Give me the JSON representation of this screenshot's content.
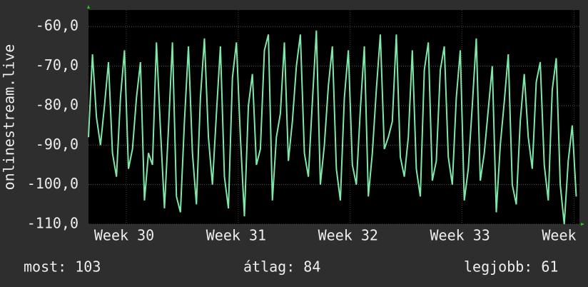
{
  "chart_data": {
    "type": "line",
    "ylabel": "onlinestream.live",
    "x": [
      0,
      0.25,
      0.5,
      0.75,
      1,
      1.25,
      1.5,
      1.75,
      2,
      2.25,
      2.5,
      2.75,
      3,
      3.25,
      3.5,
      3.75,
      4,
      4.25,
      4.5,
      4.75,
      5,
      5.25,
      5.5,
      5.75,
      6,
      6.25,
      6.5,
      6.75,
      7,
      7.25,
      7.5,
      7.75,
      8,
      8.25,
      8.5,
      8.75,
      9,
      9.25,
      9.5,
      9.75,
      10,
      10.25,
      10.5,
      10.75,
      11,
      11.25,
      11.5,
      11.75,
      12,
      12.25,
      12.5,
      12.75,
      13,
      13.25,
      13.5,
      13.75,
      14,
      14.25,
      14.5,
      14.75,
      15,
      15.25,
      15.5,
      15.75,
      16,
      16.25,
      16.5,
      16.75,
      17,
      17.25,
      17.5,
      17.75,
      18,
      18.25,
      18.5,
      18.75,
      19,
      19.25,
      19.5,
      19.75,
      20,
      20.25,
      20.5,
      20.75,
      21,
      21.25,
      21.5,
      21.75,
      22,
      22.25,
      22.5,
      22.75,
      23,
      23.25,
      23.5,
      23.75,
      24,
      24.25,
      24.5,
      24.75,
      25,
      25.25,
      25.5,
      25.75,
      26,
      26.25,
      26.5,
      26.75,
      27,
      27.25,
      27.5,
      27.75,
      28,
      28.25,
      28.5,
      28.75,
      29,
      29.25,
      29.5,
      29.75,
      30,
      30.25,
      30.5
    ],
    "values": [
      -88,
      -67,
      -83,
      -90,
      -80,
      -69,
      -92,
      -98,
      -78,
      -66,
      -96,
      -91,
      -78,
      -69,
      -104,
      -92,
      -95,
      -64,
      -86,
      -106,
      -86,
      -64,
      -103,
      -107,
      -84,
      -65,
      -92,
      -105,
      -78,
      -63,
      -88,
      -100,
      -82,
      -65,
      -98,
      -106,
      -73,
      -64,
      -88,
      -108,
      -80,
      -72,
      -95,
      -91,
      -66,
      -62,
      -104,
      -88,
      -82,
      -64,
      -94,
      -84,
      -70,
      -62,
      -92,
      -98,
      -79,
      -61,
      -100,
      -90,
      -75,
      -65,
      -96,
      -104,
      -78,
      -66,
      -95,
      -100,
      -81,
      -65,
      -103,
      -92,
      -76,
      -62,
      -91,
      -88,
      -84,
      -62,
      -93,
      -98,
      -88,
      -66,
      -96,
      -103,
      -71,
      -64,
      -99,
      -94,
      -71,
      -65,
      -93,
      -100,
      -78,
      -66,
      -104,
      -96,
      -80,
      -63,
      -99,
      -92,
      -81,
      -70,
      -107,
      -90,
      -79,
      -67,
      -100,
      -105,
      -84,
      -72,
      -88,
      -96,
      -74,
      -69,
      -95,
      -104,
      -76,
      -68,
      -100,
      -110,
      -94,
      -85,
      -103
    ],
    "color": "#7fe8a8",
    "xlim": [
      0,
      30.7
    ],
    "xticks": [
      {
        "value": 2.36,
        "label": "Week 30"
      },
      {
        "value": 9.36,
        "label": "Week 31"
      },
      {
        "value": 16.36,
        "label": "Week 32"
      },
      {
        "value": 23.36,
        "label": "Week 33"
      },
      {
        "value": 30.36,
        "label": "Week"
      }
    ],
    "ylim": [
      -110,
      -55.8
    ],
    "yticks": [
      {
        "value": -110,
        "label": "-110,0"
      },
      {
        "value": -100,
        "label": "-100,0"
      },
      {
        "value": -90,
        "label": "-90,0"
      },
      {
        "value": -80,
        "label": "-80,0"
      },
      {
        "value": -70,
        "label": "-70,0"
      },
      {
        "value": -60,
        "label": "-60,0"
      }
    ],
    "grid": true,
    "footer": {
      "current": "most: 103",
      "average": "átlag: 84",
      "best": "legjobb: 61"
    }
  }
}
